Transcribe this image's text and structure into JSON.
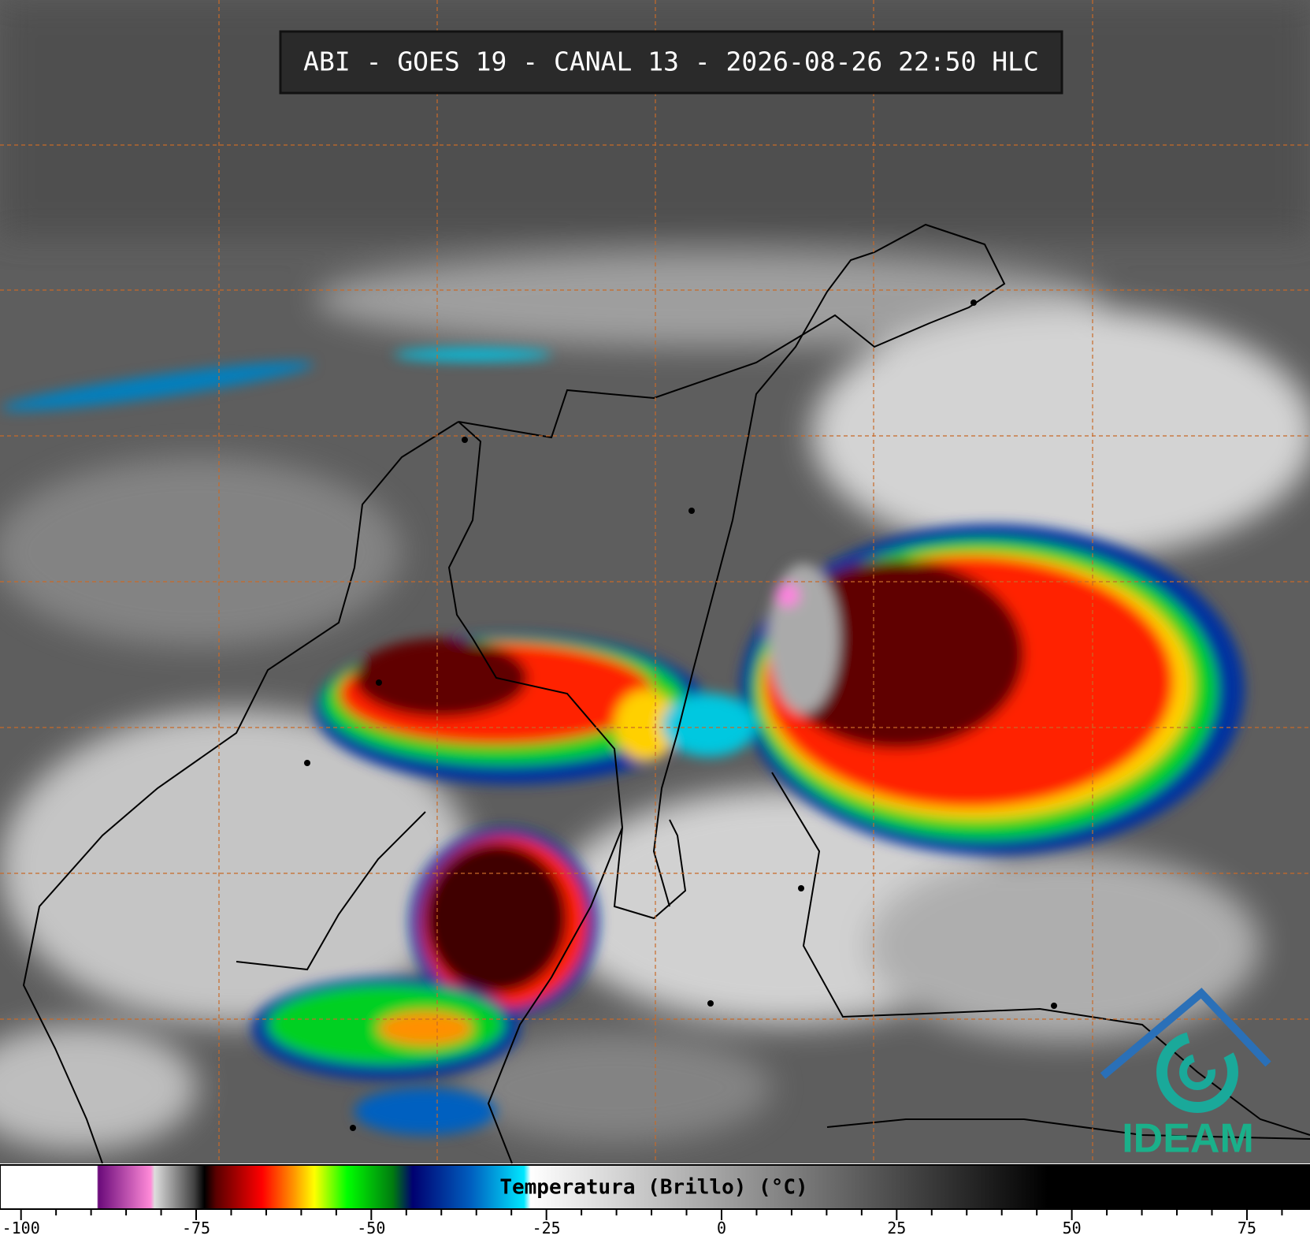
{
  "header": {
    "title": "ABI - GOES 19 - CANAL 13 - 2026-08-26 22:50 HLC"
  },
  "logo": {
    "text": "IDEAM"
  },
  "colorbar": {
    "label": "Temperatura (Brillo) (°C)",
    "lim": [
      -103,
      84
    ],
    "ticks": [
      -100,
      -75,
      -50,
      -25,
      0,
      25,
      50,
      75
    ]
  }
}
